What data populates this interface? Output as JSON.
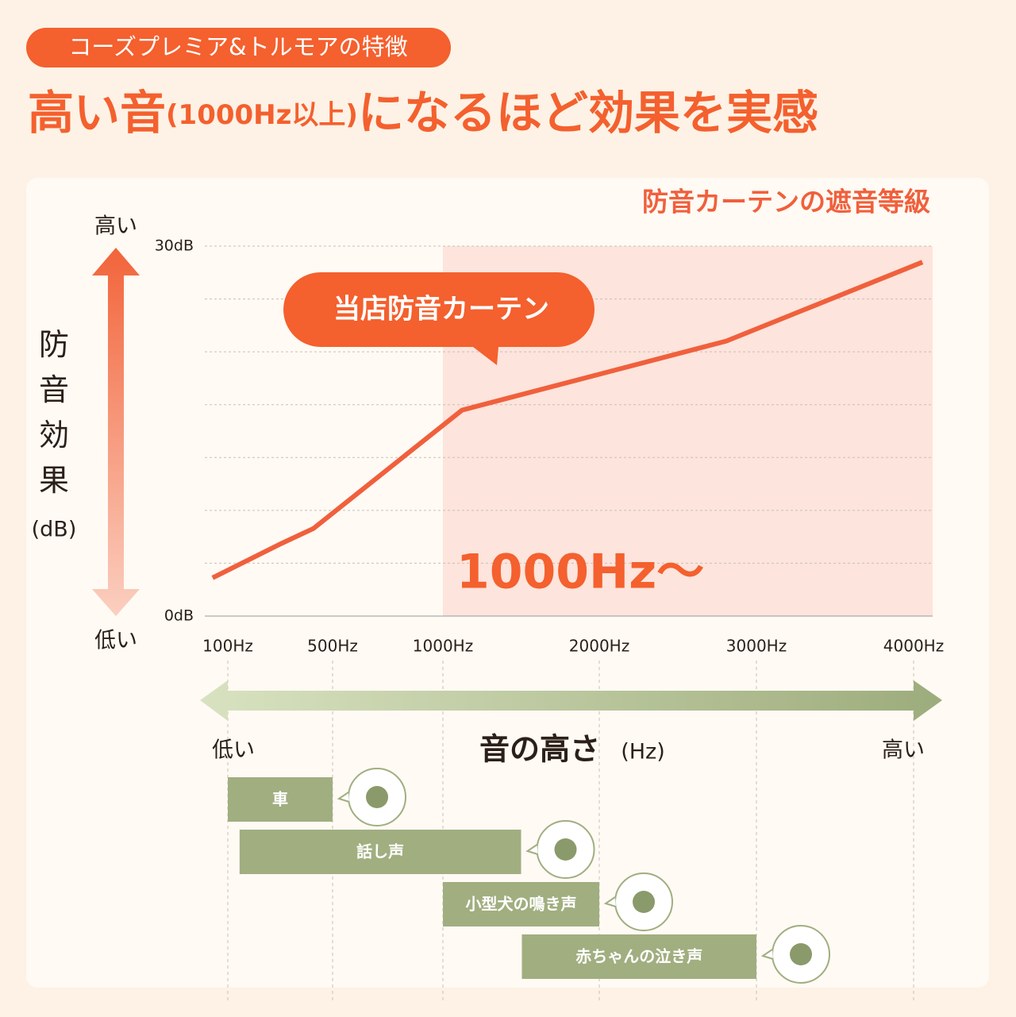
{
  "header": {
    "tag": "コーズプレミア&トルモアの特徴",
    "title": [
      "高い音",
      "(1000Hz以上)",
      "になるほど効果を実感"
    ]
  },
  "chart_data": {
    "type": "line",
    "title": "防音カーテンの遮音等級",
    "y_axis": {
      "high": "高い",
      "label": "防音効果",
      "unit": "(dB)",
      "low": "低い"
    },
    "ylim": [
      0,
      30
    ],
    "yticks": [
      {
        "value": 0,
        "label": "0dB"
      },
      {
        "value": 30,
        "label": "30dB"
      }
    ],
    "xlim": [
      100,
      4000
    ],
    "xticks": [
      {
        "value": 100,
        "label": "100Hz"
      },
      {
        "value": 500,
        "label": "500Hz"
      },
      {
        "value": 1000,
        "label": "1000Hz"
      },
      {
        "value": 2000,
        "label": "2000Hz"
      },
      {
        "value": 3000,
        "label": "3000Hz"
      },
      {
        "value": 4000,
        "label": "4000Hz"
      }
    ],
    "highlight": {
      "from": 1000,
      "label": "1000Hz〜"
    },
    "series": [
      {
        "name": "当店防音カーテン",
        "color": "#f0603c",
        "x": [
          42,
          306,
          427,
          1122,
          2808,
          4056
        ],
        "values": [
          3.1,
          5.9,
          7.1,
          16.7,
          22.3,
          28.7
        ]
      }
    ],
    "x_axis": {
      "low": "低い",
      "label": "音の高さ",
      "unit": "(Hz)",
      "high": "高い"
    },
    "ranges": [
      {
        "label": "車",
        "start": 100,
        "end": 500
      },
      {
        "label": "話し声",
        "start": 145,
        "end": 1500
      },
      {
        "label": "小型犬の鳴き声",
        "start": 1000,
        "end": 2000
      },
      {
        "label": "赤ちゃんの泣き声",
        "start": 1505,
        "end": 3000
      }
    ]
  }
}
